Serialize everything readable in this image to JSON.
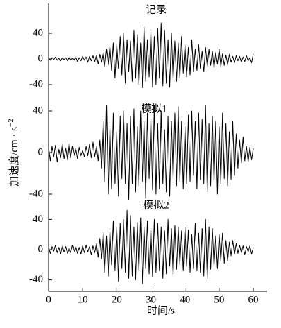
{
  "chart_data": [
    {
      "type": "line",
      "title": "记录",
      "ylabel": "加速度/cm · s",
      "ylabel_exponent": "−2",
      "color": "#000000",
      "ylim": [
        -60,
        60
      ],
      "yticks": [
        -40,
        0,
        40
      ],
      "x": [
        0,
        0.5,
        1,
        1.5,
        2,
        2.5,
        3,
        3.5,
        4,
        4.5,
        5,
        5.5,
        6,
        6.5,
        7,
        7.5,
        8,
        8.5,
        9,
        9.5,
        10,
        10.5,
        11,
        11.5,
        12,
        12.5,
        13,
        13.5,
        14,
        14.5,
        15,
        15.5,
        16,
        16.5,
        17,
        17.5,
        18,
        18.5,
        19,
        19.5,
        20,
        20.5,
        21,
        21.5,
        22,
        22.5,
        23,
        23.5,
        24,
        24.5,
        25,
        25.5,
        26,
        26.5,
        27,
        27.5,
        28,
        28.5,
        29,
        29.5,
        30,
        30.5,
        31,
        31.5,
        32,
        32.5,
        33,
        33.5,
        34,
        34.5,
        35,
        35.5,
        36,
        36.5,
        37,
        37.5,
        38,
        38.5,
        39,
        39.5,
        40,
        40.5,
        41,
        41.5,
        42,
        42.5,
        43,
        43.5,
        44,
        44.5,
        45,
        45.5,
        46,
        46.5,
        47,
        47.5,
        48,
        48.5,
        49,
        49.5,
        50,
        50.5,
        51,
        51.5,
        52,
        52.5,
        53,
        53.5,
        54,
        54.5,
        55,
        55.5,
        56,
        56.5,
        57,
        57.5,
        58,
        58.5,
        59,
        59.5,
        60
      ],
      "values": [
        1,
        -2,
        2,
        -1,
        3,
        -2,
        1,
        -3,
        2,
        -1,
        2,
        -3,
        3,
        -2,
        1,
        -2,
        3,
        -4,
        2,
        -3,
        4,
        -2,
        3,
        -5,
        4,
        -3,
        5,
        -4,
        6,
        -8,
        7,
        -5,
        10,
        -12,
        15,
        -9,
        20,
        -18,
        25,
        -30,
        22,
        -15,
        35,
        -25,
        40,
        -38,
        30,
        -20,
        28,
        -35,
        45,
        -30,
        38,
        -40,
        25,
        -45,
        50,
        -35,
        30,
        -28,
        42,
        -44,
        35,
        -40,
        48,
        -30,
        56,
        -42,
        45,
        -38,
        30,
        -44,
        40,
        -32,
        28,
        -35,
        25,
        -30,
        35,
        -22,
        22,
        -28,
        18,
        -25,
        30,
        -20,
        15,
        -18,
        22,
        -15,
        12,
        -20,
        18,
        -12,
        15,
        -10,
        12,
        -14,
        10,
        -8,
        15,
        -12,
        8,
        -10,
        6,
        -9,
        7,
        -5,
        4,
        -6,
        5,
        -3,
        4,
        -5,
        3,
        -4,
        5,
        -3,
        2,
        -6,
        8
      ]
    },
    {
      "type": "line",
      "title": "模拟1",
      "color": "#000000",
      "ylim": [
        -50,
        50
      ],
      "yticks": [
        -40,
        0,
        40
      ],
      "x": [
        0,
        0.5,
        1,
        1.5,
        2,
        2.5,
        3,
        3.5,
        4,
        4.5,
        5,
        5.5,
        6,
        6.5,
        7,
        7.5,
        8,
        8.5,
        9,
        9.5,
        10,
        10.5,
        11,
        11.5,
        12,
        12.5,
        13,
        13.5,
        14,
        14.5,
        15,
        15.5,
        16,
        16.5,
        17,
        17.5,
        18,
        18.5,
        19,
        19.5,
        20,
        20.5,
        21,
        21.5,
        22,
        22.5,
        23,
        23.5,
        24,
        24.5,
        25,
        25.5,
        26,
        26.5,
        27,
        27.5,
        28,
        28.5,
        29,
        29.5,
        30,
        30.5,
        31,
        31.5,
        32,
        32.5,
        33,
        33.5,
        34,
        34.5,
        35,
        35.5,
        36,
        36.5,
        37,
        37.5,
        38,
        38.5,
        39,
        39.5,
        40,
        40.5,
        41,
        41.5,
        42,
        42.5,
        43,
        43.5,
        44,
        44.5,
        45,
        45.5,
        46,
        46.5,
        47,
        47.5,
        48,
        48.5,
        49,
        49.5,
        50,
        50.5,
        51,
        51.5,
        52,
        52.5,
        53,
        53.5,
        54,
        54.5,
        55,
        55.5,
        56,
        56.5,
        57,
        57.5,
        58,
        58.5,
        59,
        59.5,
        60
      ],
      "values": [
        5,
        -8,
        6,
        -4,
        7,
        -9,
        3,
        -5,
        8,
        -6,
        4,
        -7,
        9,
        -5,
        6,
        -3,
        4,
        -6,
        5,
        -3,
        2,
        -4,
        6,
        -3,
        8,
        -5,
        10,
        -4,
        6,
        -8,
        12,
        -15,
        30,
        -28,
        45,
        -40,
        25,
        -35,
        38,
        -30,
        20,
        -42,
        35,
        -25,
        40,
        -30,
        28,
        -45,
        35,
        -30,
        42,
        -38,
        25,
        -32,
        40,
        -28,
        30,
        -44,
        38,
        -25,
        32,
        -36,
        45,
        -40,
        28,
        -35,
        40,
        -30,
        22,
        -38,
        35,
        -42,
        30,
        -25,
        38,
        -32,
        44,
        -28,
        30,
        -35,
        25,
        -30,
        36,
        -28,
        40,
        -22,
        30,
        -35,
        38,
        -26,
        32,
        -30,
        45,
        -38,
        28,
        -32,
        35,
        -28,
        30,
        -40,
        25,
        -30,
        38,
        -25,
        28,
        -32,
        20,
        -26,
        30,
        -22,
        18,
        -15,
        12,
        -10,
        15,
        -8,
        6,
        -9,
        5,
        -7,
        4
      ]
    },
    {
      "type": "line",
      "title": "模拟2",
      "xlabel": "时间/s",
      "color": "#000000",
      "ylim": [
        -55,
        55
      ],
      "yticks": [
        -40,
        0,
        40
      ],
      "xlim": [
        0,
        64
      ],
      "xticks": [
        0,
        10,
        20,
        30,
        40,
        50,
        60
      ],
      "x": [
        0,
        0.5,
        1,
        1.5,
        2,
        2.5,
        3,
        3.5,
        4,
        4.5,
        5,
        5.5,
        6,
        6.5,
        7,
        7.5,
        8,
        8.5,
        9,
        9.5,
        10,
        10.5,
        11,
        11.5,
        12,
        12.5,
        13,
        13.5,
        14,
        14.5,
        15,
        15.5,
        16,
        16.5,
        17,
        17.5,
        18,
        18.5,
        19,
        19.5,
        20,
        20.5,
        21,
        21.5,
        22,
        22.5,
        23,
        23.5,
        24,
        24.5,
        25,
        25.5,
        26,
        26.5,
        27,
        27.5,
        28,
        28.5,
        29,
        29.5,
        30,
        30.5,
        31,
        31.5,
        32,
        32.5,
        33,
        33.5,
        34,
        34.5,
        35,
        35.5,
        36,
        36.5,
        37,
        37.5,
        38,
        38.5,
        39,
        39.5,
        40,
        40.5,
        41,
        41.5,
        42,
        42.5,
        43,
        43.5,
        44,
        44.5,
        45,
        45.5,
        46,
        46.5,
        47,
        47.5,
        48,
        48.5,
        49,
        49.5,
        50,
        50.5,
        51,
        51.5,
        52,
        52.5,
        53,
        53.5,
        54,
        54.5,
        55,
        55.5,
        56,
        56.5,
        57,
        57.5,
        58,
        58.5,
        59,
        59.5,
        60
      ],
      "values": [
        3,
        -5,
        4,
        -2,
        6,
        -4,
        3,
        -6,
        5,
        -3,
        4,
        -5,
        2,
        -4,
        6,
        -3,
        4,
        -5,
        3,
        -6,
        5,
        -4,
        6,
        -3,
        4,
        -7,
        5,
        -4,
        8,
        -10,
        15,
        -12,
        22,
        -30,
        18,
        -35,
        25,
        -20,
        38,
        -28,
        30,
        -42,
        35,
        -25,
        40,
        -30,
        52,
        -38,
        45,
        -35,
        30,
        -40,
        36,
        -28,
        42,
        -45,
        30,
        -25,
        38,
        -32,
        28,
        -36,
        40,
        -30,
        35,
        -28,
        30,
        -38,
        25,
        -32,
        40,
        -22,
        28,
        -35,
        32,
        -26,
        30,
        -20,
        25,
        -28,
        30,
        -22,
        26,
        -30,
        20,
        -25,
        35,
        -28,
        22,
        -30,
        28,
        -35,
        40,
        -38,
        30,
        -26,
        28,
        -22,
        18,
        -25,
        20,
        -15,
        22,
        -18,
        12,
        -15,
        10,
        -8,
        12,
        -6,
        8,
        -5,
        6,
        -4,
        5,
        -7,
        4,
        -3,
        5,
        -6,
        3
      ]
    }
  ]
}
